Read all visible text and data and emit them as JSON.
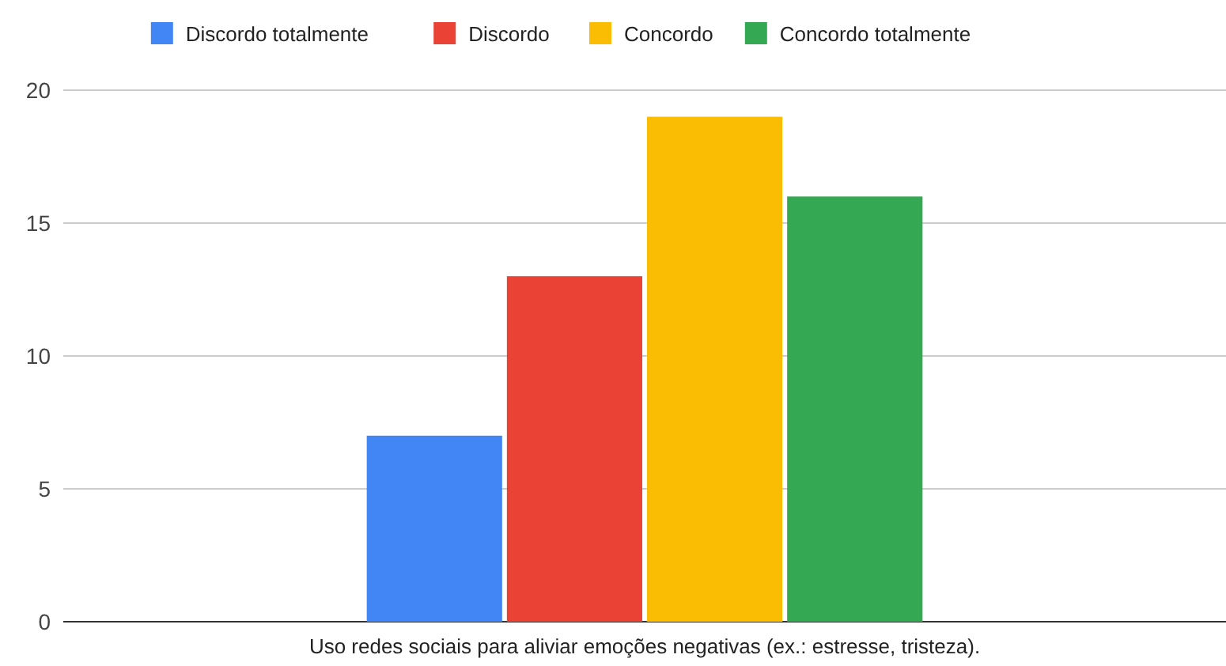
{
  "chart_data": {
    "type": "bar",
    "categories": [
      "Uso redes sociais para aliviar emoções negativas (ex.: estresse, tristeza)."
    ],
    "series": [
      {
        "name": "Discordo totalmente",
        "color": "#4285f4",
        "values": [
          7
        ]
      },
      {
        "name": "Discordo",
        "color": "#ea4335",
        "values": [
          13
        ]
      },
      {
        "name": "Concordo",
        "color": "#fbbc04",
        "values": [
          19
        ]
      },
      {
        "name": "Concordo totalmente",
        "color": "#34a853",
        "values": [
          16
        ]
      }
    ],
    "ylim": [
      0,
      20
    ],
    "yticks": [
      0,
      5,
      10,
      15,
      20
    ],
    "grid": "y",
    "legend": "top"
  }
}
